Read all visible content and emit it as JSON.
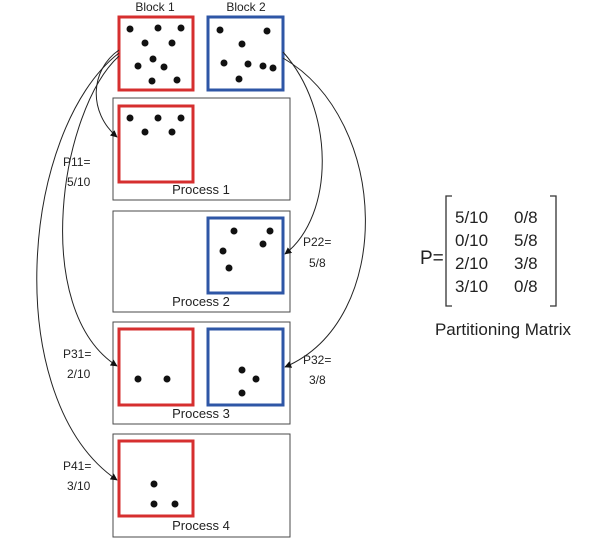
{
  "blocks": [
    {
      "label": "Block 1",
      "color": "#d62f2f"
    },
    {
      "label": "Block 2",
      "color": "#2e56a6"
    }
  ],
  "processes": [
    {
      "label": "Process 1"
    },
    {
      "label": "Process 2"
    },
    {
      "label": "Process 3"
    },
    {
      "label": "Process 4"
    }
  ],
  "edge_labels": {
    "p11": {
      "name": "P11=",
      "value": "5/10"
    },
    "p22": {
      "name": "P22=",
      "value": "5/8"
    },
    "p31": {
      "name": "P31=",
      "value": "2/10"
    },
    "p32": {
      "name": "P32=",
      "value": "3/8"
    },
    "p41": {
      "name": "P41=",
      "value": "3/10"
    }
  },
  "matrix": {
    "prefix": "P=",
    "rows": [
      [
        "5/10",
        "0/8"
      ],
      [
        "0/10",
        "5/8"
      ],
      [
        "2/10",
        "3/8"
      ],
      [
        "3/10",
        "0/8"
      ]
    ],
    "caption": "Partitioning Matrix"
  }
}
